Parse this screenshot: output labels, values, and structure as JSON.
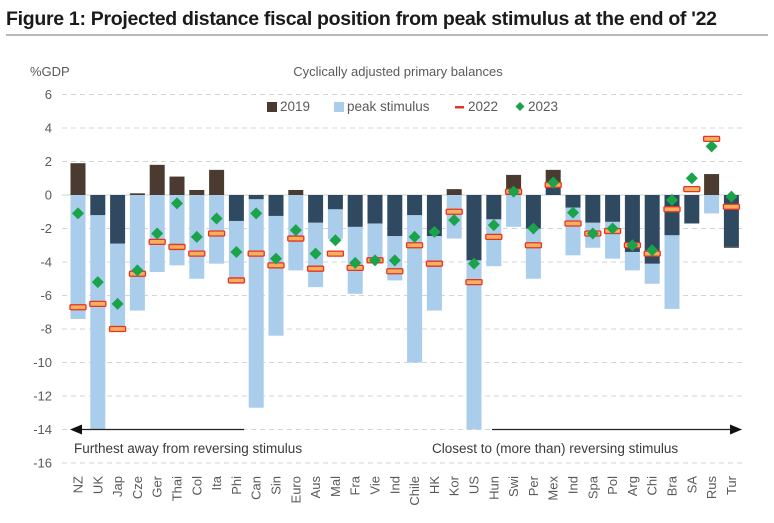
{
  "figure": {
    "title": "Figure 1: Projected distance fiscal position from peak stimulus at the end of '22"
  },
  "chart_data": {
    "type": "bar",
    "title": "Cyclically adjusted primary balances",
    "ylabel": "%GDP",
    "xlabel": "",
    "ylim": [
      -16,
      6
    ],
    "yticks": [
      6,
      4,
      2,
      0,
      -2,
      -4,
      -6,
      -8,
      -10,
      -12,
      -14,
      -16
    ],
    "grid": true,
    "legend_position": "top-center",
    "legend": [
      {
        "name": "2019",
        "marker": "square",
        "color": "#4a3a2f"
      },
      {
        "name": "peak stimulus",
        "marker": "square",
        "color": "#a9cdea"
      },
      {
        "name": "2022",
        "marker": "dash",
        "color": "#e8312a"
      },
      {
        "name": "2023",
        "marker": "diamond",
        "color": "#1aa34a"
      }
    ],
    "overlap_color": "#2f4a60",
    "categories": [
      "NZ",
      "UK",
      "Jap",
      "Cze",
      "Ger",
      "Thai",
      "Col",
      "Ita",
      "Phi",
      "Can",
      "Sin",
      "Euro",
      "Aus",
      "Mal",
      "Fra",
      "Vie",
      "Ind",
      "Chile",
      "HK",
      "Kor",
      "US",
      "Hun",
      "Swi",
      "Per",
      "Mex",
      "Ind",
      "Spa",
      "Pol",
      "Arg",
      "Chi",
      "Bra",
      "SA",
      "Rus",
      "Tur"
    ],
    "series": [
      {
        "name": "2019",
        "type": "bar",
        "values": [
          1.9,
          -1.2,
          -2.9,
          0.1,
          1.8,
          1.1,
          0.3,
          1.5,
          -1.55,
          -0.25,
          -1.25,
          0.3,
          -1.65,
          -0.85,
          -1.9,
          -1.7,
          -2.45,
          -1.2,
          -2.45,
          0.35,
          -3.9,
          -1.45,
          1.2,
          -2.0,
          1.5,
          -0.75,
          -1.65,
          -1.6,
          -3.4,
          -4.1,
          -2.4,
          -1.7,
          1.25,
          -3.15
        ]
      },
      {
        "name": "peak stimulus",
        "type": "bar",
        "values": [
          -7.4,
          -14.0,
          -8.0,
          -6.9,
          -4.6,
          -4.2,
          -5.0,
          -4.1,
          -5.2,
          -12.7,
          -8.4,
          -4.5,
          -5.5,
          -2.65,
          -5.9,
          -4.0,
          -5.1,
          -10.0,
          -6.9,
          -2.6,
          -14.0,
          -4.25,
          -1.9,
          -5.0,
          0.6,
          -3.6,
          -3.15,
          -3.8,
          -4.5,
          -5.3,
          -6.8,
          -1.7,
          -1.1,
          -3.1
        ]
      },
      {
        "name": "2022",
        "type": "marker",
        "values": [
          -6.7,
          -6.5,
          -8.0,
          -4.7,
          -2.8,
          -3.1,
          -3.5,
          -2.3,
          -5.1,
          -3.5,
          -4.2,
          -2.6,
          -4.4,
          -3.5,
          -4.35,
          -3.9,
          -4.55,
          -3.0,
          -4.1,
          -1.0,
          -5.2,
          -2.5,
          0.2,
          -3.0,
          0.6,
          -1.7,
          -2.3,
          -2.15,
          -3.0,
          -3.5,
          -0.85,
          0.35,
          3.35,
          -0.7
        ]
      },
      {
        "name": "2023",
        "type": "marker",
        "values": [
          -1.1,
          -5.2,
          -6.5,
          -4.5,
          -2.3,
          -0.5,
          -2.5,
          -1.4,
          -3.4,
          -1.1,
          -3.8,
          -2.1,
          -3.5,
          -2.7,
          -4.05,
          -3.9,
          -3.9,
          -2.5,
          -2.2,
          -1.5,
          -4.1,
          -1.8,
          0.2,
          -2.0,
          0.75,
          -1.05,
          -2.3,
          -2.0,
          -3.0,
          -3.3,
          -0.3,
          1.0,
          2.9,
          -0.1
        ]
      }
    ],
    "annotations": [
      {
        "text": "Furthest away from reversing stimulus",
        "arrow": "left",
        "y": -14
      },
      {
        "text": "Closest to (more than) reversing stimulus",
        "arrow": "right",
        "y": -14
      }
    ]
  }
}
